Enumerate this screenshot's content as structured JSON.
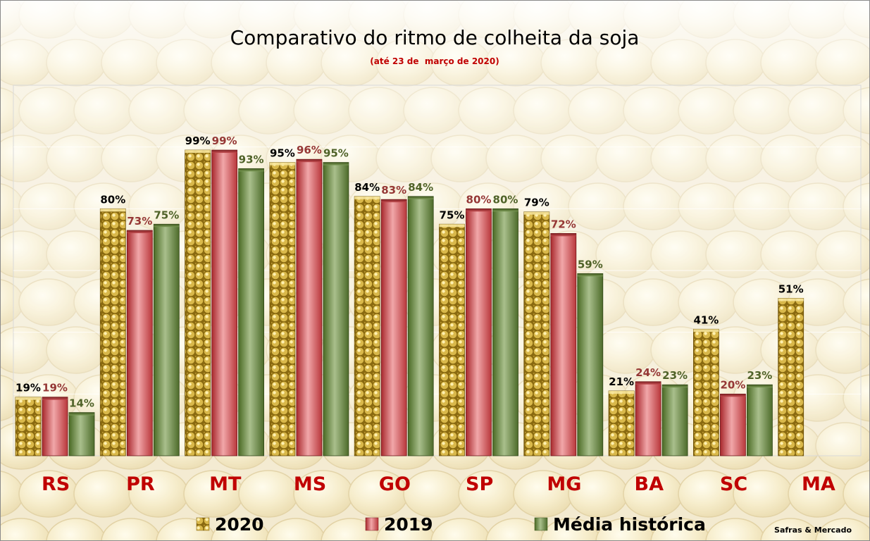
{
  "chart_data": {
    "type": "bar",
    "title": "Comparativo do ritmo de colheita da soja",
    "subtitle": "(até 23 de  março de 2020)",
    "categories": [
      "RS",
      "PR",
      "MT",
      "MS",
      "GO",
      "SP",
      "MG",
      "BA",
      "SC",
      "MA"
    ],
    "series": [
      {
        "name": "2020",
        "values": [
          19,
          80,
          99,
          95,
          84,
          75,
          79,
          21,
          41,
          51
        ],
        "labels": [
          "19%",
          "80%",
          "99%",
          "95%",
          "84%",
          "75%",
          "79%",
          "21%",
          "41%",
          "51%"
        ],
        "color": "#d9b84a",
        "label_color": "#000000"
      },
      {
        "name": "2019",
        "values": [
          19,
          73,
          99,
          96,
          83,
          80,
          72,
          24,
          20,
          null
        ],
        "labels": [
          "19%",
          "73%",
          "99%",
          "96%",
          "83%",
          "80%",
          "72%",
          "24%",
          "20%",
          ""
        ],
        "color": "#c0494c",
        "label_color": "#953735"
      },
      {
        "name": "Média histórica",
        "values": [
          14,
          75,
          93,
          95,
          84,
          80,
          59,
          23,
          23,
          null
        ],
        "labels": [
          "14%",
          "75%",
          "93%",
          "95%",
          "84%",
          "80%",
          "59%",
          "23%",
          "23%",
          ""
        ],
        "color": "#5d7a3a",
        "label_color": "#4f6228"
      }
    ],
    "ylim": [
      0,
      120
    ],
    "gridlines": true,
    "legend_position": "bottom",
    "category_label_color": "#c00000",
    "source": "Safras & Mercado"
  }
}
